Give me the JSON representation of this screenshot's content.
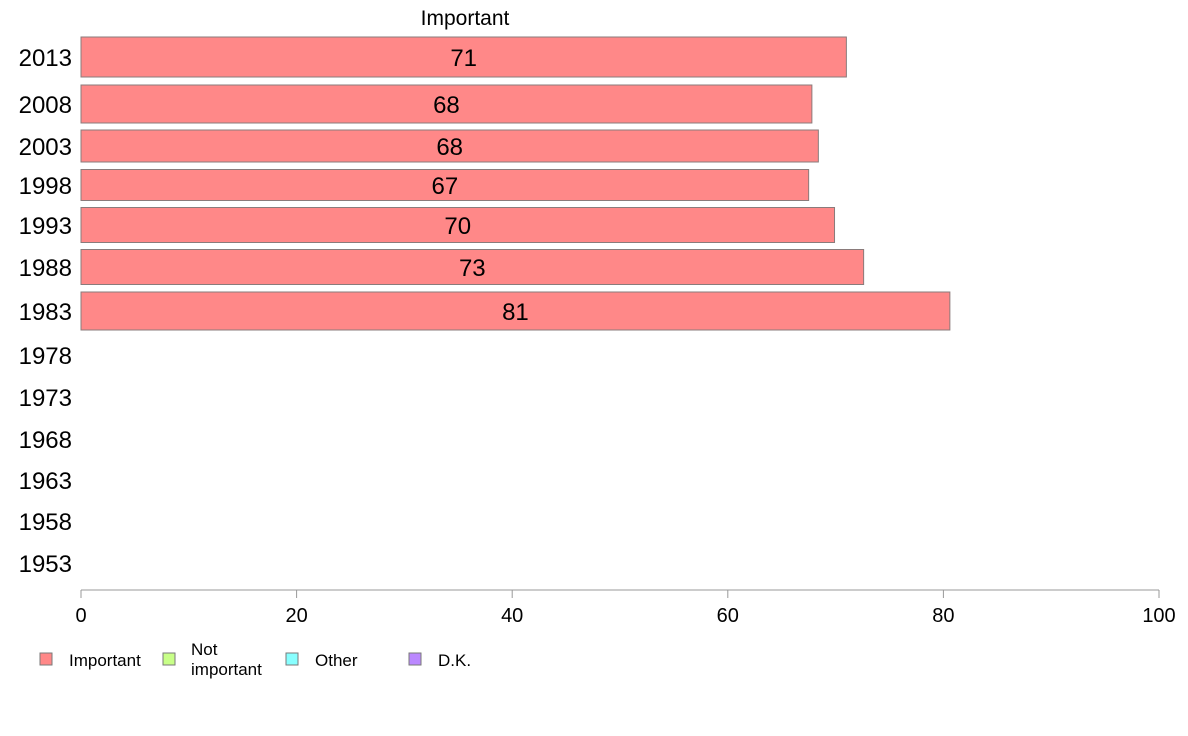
{
  "chart_data": {
    "type": "bar",
    "orientation": "horizontal",
    "title": "",
    "xlabel": "",
    "ylabel": "",
    "categories": [
      "2013",
      "2008",
      "2003",
      "1998",
      "1993",
      "1988",
      "1983",
      "1978",
      "1973",
      "1968",
      "1963",
      "1958",
      "1953"
    ],
    "series": [
      {
        "name": "Important",
        "color": "#ff8888",
        "values": [
          71,
          67.8,
          68.4,
          67.5,
          69.9,
          72.6,
          80.6,
          null,
          null,
          null,
          null,
          null,
          null
        ],
        "labels": [
          "71",
          "68",
          "68",
          "67",
          "70",
          "73",
          "81",
          "",
          "",
          "",
          "",
          "",
          ""
        ]
      }
    ],
    "panel_title": "Important",
    "xlim": [
      0,
      100
    ],
    "xticks": [
      "0",
      "20",
      "40",
      "60",
      "80",
      "100"
    ],
    "grid": false,
    "legend": {
      "position": "bottom-left",
      "items": [
        {
          "label": "Important",
          "color": "#ff8888"
        },
        {
          "label": "Not important",
          "label_lines": [
            "Not",
            "important"
          ],
          "color": "#c8ff88"
        },
        {
          "label": "Other",
          "color": "#88ffff"
        },
        {
          "label": "D.K.",
          "color": "#bb88ff"
        }
      ]
    }
  }
}
